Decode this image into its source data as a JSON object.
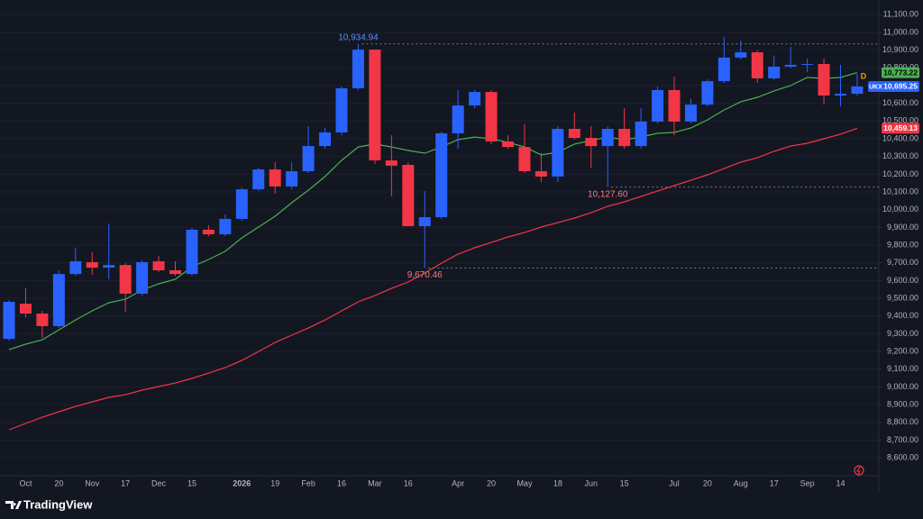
{
  "chart_data": {
    "type": "candlestick",
    "symbol": "UKX",
    "interval": "D",
    "up_color": "#2962ff",
    "down_color": "#f23645",
    "categories": [
      null,
      "Oct",
      null,
      "20",
      null,
      "Nov",
      null,
      "17",
      null,
      "Dec",
      null,
      "15",
      null,
      null,
      "2026",
      null,
      "19",
      null,
      "Feb",
      null,
      "16",
      null,
      "Mar",
      null,
      "16",
      null,
      null,
      "Apr",
      null,
      "20",
      null,
      "May",
      null,
      "18",
      null,
      "Jun",
      null,
      "15",
      null,
      null,
      "Jul",
      null,
      "20",
      null,
      "Aug",
      null,
      "17",
      null,
      "Sep",
      null,
      "14",
      null
    ],
    "open": [
      9271,
      9470,
      9414,
      9343,
      9637,
      9704,
      9673,
      9688,
      9526,
      9709,
      9658,
      9637,
      9887,
      9861,
      9948,
      10115,
      10227,
      10131,
      10217,
      10359,
      10436,
      10685,
      10903,
      10278,
      10253,
      9907,
      9958,
      10431,
      10588,
      10664,
      10385,
      10354,
      10217,
      10187,
      10456,
      10405,
      10359,
      10456,
      10359,
      10497,
      10675,
      10497,
      10593,
      10725,
      10858,
      10888,
      10741,
      10807,
      10817,
      10822,
      10644,
      10654
    ],
    "high": [
      9490,
      9556,
      9429,
      9658,
      9785,
      9760,
      9922,
      9698,
      9714,
      9739,
      9709,
      9897,
      9912,
      9973,
      10126,
      10237,
      10268,
      10268,
      10471,
      10461,
      10695,
      10934.94,
      10903,
      10420,
      10268,
      10105,
      10441,
      10675,
      10675,
      10675,
      10420,
      10481,
      10319,
      10471,
      10548,
      10471,
      10471,
      10573,
      10573,
      10695,
      10751,
      10624,
      10736,
      10975,
      10954,
      10898,
      10868,
      10919,
      10853,
      10853,
      10817,
      10766
    ],
    "low": [
      9261,
      9393,
      9277,
      9332,
      9627,
      9632,
      9607,
      9424,
      9515,
      9648,
      9627,
      9627,
      9851,
      9851,
      9937,
      10105,
      10090,
      10115,
      10207,
      10344,
      10420,
      10675,
      10258,
      10075,
      9907,
      9670.46,
      9948,
      10344,
      10573,
      10370,
      10344,
      10207,
      10156,
      10156,
      10395,
      10237,
      10127.6,
      10344,
      10344,
      10487,
      10420,
      10487,
      10583,
      10715,
      10847,
      10715,
      10731,
      10797,
      10776,
      10593,
      10583,
      10644
    ],
    "close": [
      9480,
      9414,
      9343,
      9637,
      9709,
      9673,
      9688,
      9526,
      9704,
      9658,
      9637,
      9887,
      9861,
      9948,
      10115,
      10227,
      10131,
      10217,
      10359,
      10436,
      10685,
      10903,
      10278,
      10248,
      9907,
      9958,
      10431,
      10588,
      10664,
      10385,
      10354,
      10217,
      10187,
      10456,
      10405,
      10359,
      10456,
      10359,
      10497,
      10675,
      10497,
      10593,
      10725,
      10858,
      10888,
      10741,
      10807,
      10817,
      10822,
      10644,
      10654,
      10695.25
    ],
    "high_labels": [
      null,
      null,
      null,
      null,
      null,
      null,
      null,
      null,
      null,
      null,
      null,
      null,
      null,
      null,
      null,
      null,
      null,
      null,
      null,
      null,
      null,
      "10,934.94",
      null,
      null,
      null,
      null,
      null,
      null,
      null,
      null,
      null,
      null,
      null,
      null,
      null,
      null,
      null,
      null,
      null,
      null,
      null,
      null,
      null,
      null,
      null,
      null,
      null,
      null,
      null,
      null,
      null,
      null
    ],
    "low_labels": [
      null,
      null,
      null,
      null,
      null,
      null,
      null,
      null,
      null,
      null,
      null,
      null,
      null,
      null,
      null,
      null,
      null,
      null,
      null,
      null,
      null,
      null,
      null,
      null,
      null,
      "9,670.46",
      null,
      null,
      null,
      null,
      null,
      null,
      null,
      null,
      null,
      null,
      "10,127.60",
      null,
      null,
      null,
      null,
      null,
      null,
      null,
      null,
      null,
      null,
      null,
      null,
      null,
      null,
      null
    ],
    "last_label": "10,695.25",
    "lines": [
      {
        "color": "#4caf50",
        "last_label": "10,773.22",
        "values": [
          9210,
          9241,
          9266,
          9322,
          9378,
          9429,
          9475,
          9495,
          9546,
          9582,
          9607,
          9678,
          9719,
          9765,
          9841,
          9902,
          9963,
          10039,
          10110,
          10187,
          10278,
          10354,
          10370,
          10354,
          10334,
          10319,
          10354,
          10395,
          10410,
          10400,
          10380,
          10354,
          10309,
          10324,
          10370,
          10390,
          10410,
          10395,
          10410,
          10431,
          10436,
          10461,
          10507,
          10563,
          10609,
          10634,
          10670,
          10700,
          10746,
          10741,
          10746,
          10773.22
        ]
      },
      {
        "color": "#f23645",
        "last_label": "10,459.13",
        "values": [
          8758,
          8794,
          8829,
          8860,
          8890,
          8916,
          8941,
          8956,
          8982,
          9002,
          9022,
          9048,
          9078,
          9109,
          9149,
          9200,
          9251,
          9292,
          9332,
          9378,
          9429,
          9480,
          9515,
          9556,
          9592,
          9643,
          9698,
          9749,
          9785,
          9815,
          9846,
          9871,
          9902,
          9927,
          9953,
          9983,
          10019,
          10044,
          10075,
          10105,
          10136,
          10166,
          10197,
          10232,
          10268,
          10293,
          10329,
          10359,
          10375,
          10400,
          10426,
          10459.13
        ]
      }
    ],
    "ylim": [
      8499,
      11183
    ],
    "yticks": [
      {
        "value": 11100,
        "label": "11,100.00"
      },
      {
        "value": 11000,
        "label": "11,000.00"
      },
      {
        "value": 10900,
        "label": "10,900.00"
      },
      {
        "value": 10800,
        "label": "10,800.00"
      },
      {
        "value": 10700,
        "label": "10,700.00"
      },
      {
        "value": 10600,
        "label": "10,600.00"
      },
      {
        "value": 10500,
        "label": "10,500.00"
      },
      {
        "value": 10400,
        "label": "10,400.00"
      },
      {
        "value": 10300,
        "label": "10,300.00"
      },
      {
        "value": 10200,
        "label": "10,200.00"
      },
      {
        "value": 10100,
        "label": "10,100.00"
      },
      {
        "value": 10000,
        "label": "10,000.00"
      },
      {
        "value": 9900,
        "label": "9,900.00"
      },
      {
        "value": 9800,
        "label": "9,800.00"
      },
      {
        "value": 9700,
        "label": "9,700.00"
      },
      {
        "value": 9600,
        "label": "9,600.00"
      },
      {
        "value": 9500,
        "label": "9,500.00"
      },
      {
        "value": 9400,
        "label": "9,400.00"
      },
      {
        "value": 9300,
        "label": "9,300.00"
      },
      {
        "value": 9200,
        "label": "9,200.00"
      },
      {
        "value": 9100,
        "label": "9,100.00"
      },
      {
        "value": 9000,
        "label": "9,000.00"
      },
      {
        "value": 8900,
        "label": "8,900.00"
      },
      {
        "value": 8800,
        "label": "8,800.00"
      },
      {
        "value": 8700,
        "label": "8,700.00"
      },
      {
        "value": 8600,
        "label": "8,600.00"
      }
    ],
    "grid": true
  },
  "footer": {
    "brand": "TradingView"
  }
}
